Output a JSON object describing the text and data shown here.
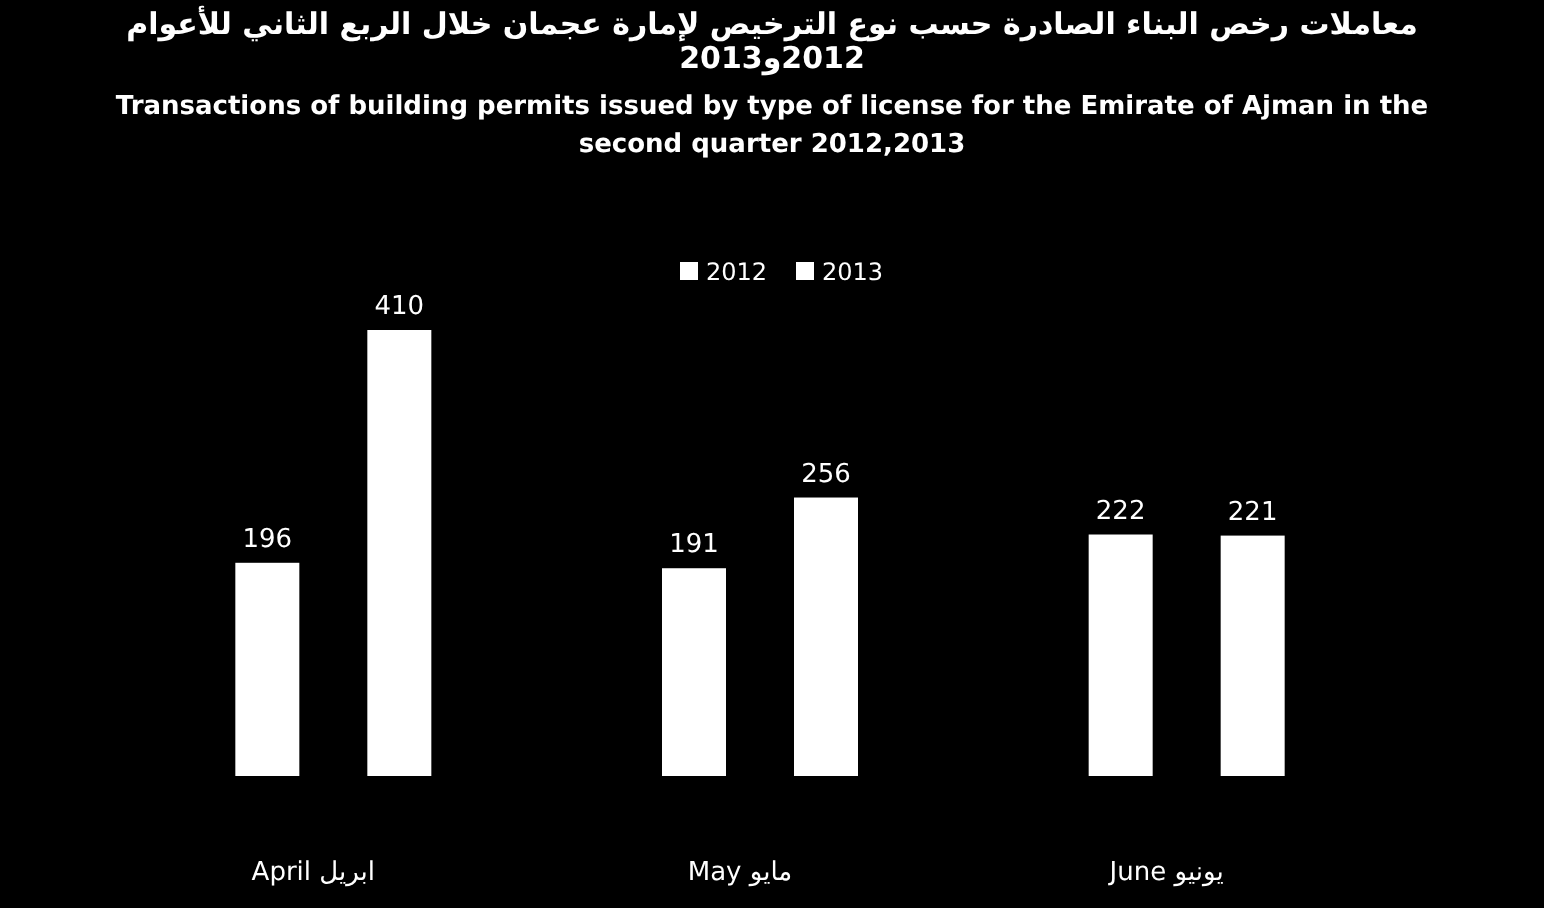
{
  "chart_data": {
    "type": "bar",
    "title": "معاملات رخص البناء الصادرة حسب نوع الترخيص لإمارة عجمان خلال الربع الثاني للأعوام 2012و2013",
    "subtitle": "Transactions of building permits issued by type of license for the Emirate of Ajman in the second quarter 2012,2013",
    "categories": [
      "April ابريل",
      "May مايو",
      "June يونيو"
    ],
    "series": [
      {
        "name": "2012",
        "color": "#ffffff",
        "values": [
          196,
          191,
          222
        ]
      },
      {
        "name": "2013",
        "color": "#ffffff",
        "values": [
          410,
          256,
          221
        ]
      }
    ],
    "data_labels": true,
    "legend": "top"
  }
}
